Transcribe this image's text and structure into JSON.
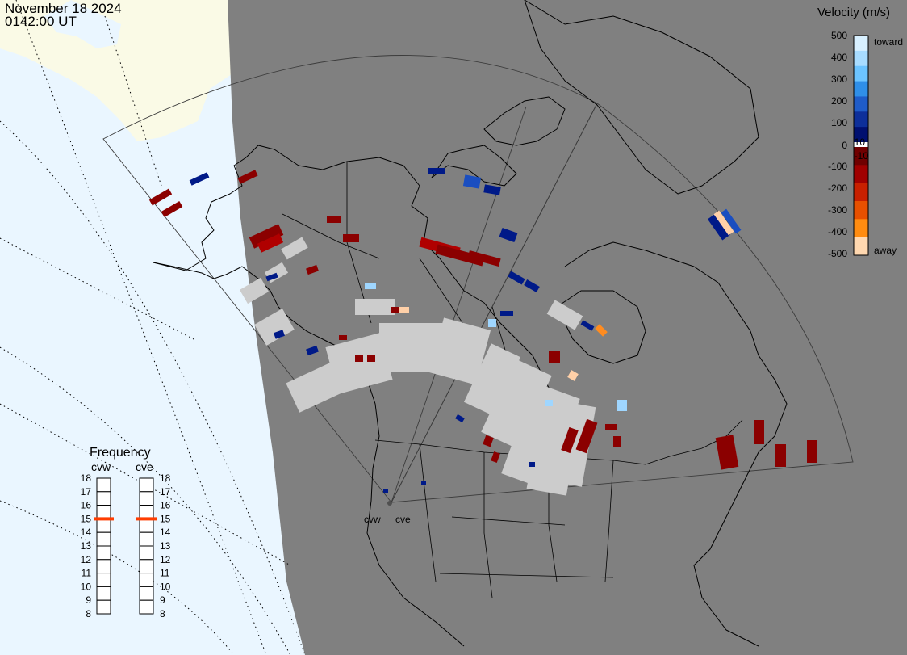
{
  "header": {
    "date": "November 18 2024",
    "time": "0142:00 UT"
  },
  "radars": [
    {
      "id": "cvw",
      "label": "cvw"
    },
    {
      "id": "cve",
      "label": "cve"
    }
  ],
  "colorbar": {
    "title": "Velocity (m/s)",
    "ticks": [
      "500",
      "400",
      "300",
      "200",
      "100",
      "10",
      "0",
      "-10",
      "-100",
      "-200",
      "-300",
      "-400",
      "-500"
    ],
    "toward_label": "toward",
    "away_label": "away",
    "colors": [
      "#d8f0ff",
      "#a8dcff",
      "#6cc4ff",
      "#2f8fe8",
      "#1f5cc8",
      "#0d2f9a",
      "#001070",
      "#ffffff",
      "#700000",
      "#a00000",
      "#c82000",
      "#e85000",
      "#ff8c10",
      "#ffd8b0"
    ]
  },
  "frequency": {
    "title": "Frequency",
    "ticks": [
      "18",
      "17",
      "16",
      "15",
      "14",
      "13",
      "12",
      "11",
      "10",
      "9",
      "8"
    ],
    "cvw_label": "cvw",
    "cve_label": "cve",
    "cvw_value": 15,
    "cve_value": 15,
    "marker_color": "#ff3c00"
  },
  "map_colors": {
    "land": "#808080",
    "ocean_day": "#eaf6ff",
    "land_day": "#fafae6",
    "ground_scatter": "#cccccc"
  }
}
